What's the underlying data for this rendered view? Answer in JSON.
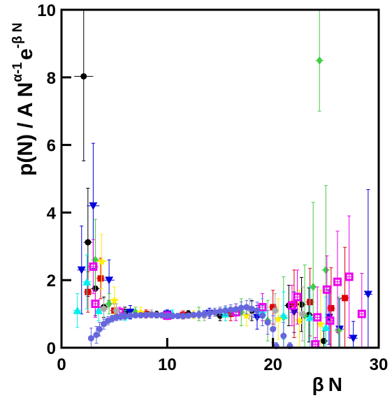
{
  "chart_data": {
    "type": "scatter",
    "title": "",
    "xlabel": {
      "prefix": "β",
      "main": "N"
    },
    "ylabel": {
      "main": "p(N) / A N",
      "sup1": "α-1",
      "base2": "e",
      "sup2": "-β N"
    },
    "xlim": [
      0,
      30
    ],
    "ylim": [
      0,
      10
    ],
    "xticks": [
      0,
      10,
      20,
      30
    ],
    "yticks": [
      0,
      2,
      4,
      6,
      8,
      10
    ],
    "xtick_labels": [
      "0",
      "10",
      "20",
      "30"
    ],
    "ytick_labels": [
      "0",
      "2",
      "4",
      "6",
      "8",
      "10"
    ],
    "grid": false,
    "legend": "none",
    "series": [
      {
        "marker": "circle",
        "color": "#000000",
        "points": [
          {
            "x": 2.1,
            "y": 8.03,
            "ey": 2.5,
            "ex": 0.9
          },
          {
            "x": 2.5,
            "y": 3.12,
            "ey": 1.6,
            "ex": 0.4
          },
          {
            "x": 3.2,
            "y": 1.75,
            "ey": 0.8,
            "ex": 0.4
          },
          {
            "x": 4.0,
            "y": 1.2,
            "ey": 0.3,
            "ex": 0.4
          },
          {
            "x": 6.0,
            "y": 1.05,
            "ey": 0.15,
            "ex": 0.4
          },
          {
            "x": 9.0,
            "y": 0.98,
            "ey": 0.1,
            "ex": 0.4
          },
          {
            "x": 12.0,
            "y": 1.0,
            "ey": 0.1,
            "ex": 0.4
          },
          {
            "x": 15.0,
            "y": 0.95,
            "ey": 0.15,
            "ex": 0.4
          },
          {
            "x": 18.0,
            "y": 1.1,
            "ey": 0.3,
            "ex": 0.4
          },
          {
            "x": 21.5,
            "y": 1.25,
            "ey": 0.6,
            "ex": 0.4
          },
          {
            "x": 22.7,
            "y": 1.28,
            "ey": 0.8,
            "ex": 0.4
          },
          {
            "x": 23.4,
            "y": 0.97,
            "ey": 0.8,
            "ex": 0.4
          },
          {
            "x": 24.8,
            "y": 0.2,
            "ey": 0.3,
            "ex": 0.4
          }
        ]
      },
      {
        "marker": "triangle-down",
        "color": "#0000dd",
        "points": [
          {
            "x": 1.9,
            "y": 2.3,
            "ey": 1.3,
            "ex": 0.4
          },
          {
            "x": 3.0,
            "y": 4.2,
            "ey": 1.85,
            "ex": 0.6
          },
          {
            "x": 4.5,
            "y": 2.0,
            "ey": 0.6,
            "ex": 0.5
          },
          {
            "x": 6.5,
            "y": 1.05,
            "ey": 0.2,
            "ex": 0.4
          },
          {
            "x": 10.0,
            "y": 1.0,
            "ey": 0.12,
            "ex": 0.4
          },
          {
            "x": 14.0,
            "y": 1.02,
            "ey": 0.15,
            "ex": 0.4
          },
          {
            "x": 18.5,
            "y": 0.9,
            "ey": 0.35,
            "ex": 0.4
          },
          {
            "x": 22.0,
            "y": 1.05,
            "ey": 0.6,
            "ex": 0.4
          },
          {
            "x": 25.3,
            "y": 0.9,
            "ey": 0.8,
            "ex": 0.4
          },
          {
            "x": 26.3,
            "y": 0.55,
            "ey": 0.9,
            "ex": 0.4
          },
          {
            "x": 27.6,
            "y": 0.28,
            "ey": 0.5,
            "ex": 0.4
          },
          {
            "x": 29.0,
            "y": 1.58,
            "ey": 3.1,
            "ex": 0.4
          }
        ]
      },
      {
        "marker": "square",
        "color": "#dd0000",
        "points": [
          {
            "x": 2.5,
            "y": 1.65,
            "ey": 0.6,
            "ex": 0.4
          },
          {
            "x": 3.7,
            "y": 2.05,
            "ey": 0.6,
            "ex": 0.4
          },
          {
            "x": 5.0,
            "y": 1.1,
            "ey": 0.2,
            "ex": 0.4
          },
          {
            "x": 8.0,
            "y": 1.0,
            "ey": 0.12,
            "ex": 0.4
          },
          {
            "x": 11.5,
            "y": 0.97,
            "ey": 0.12,
            "ex": 0.4
          },
          {
            "x": 16.0,
            "y": 1.0,
            "ey": 0.2,
            "ex": 0.4
          },
          {
            "x": 20.0,
            "y": 1.2,
            "ey": 0.5,
            "ex": 0.4
          },
          {
            "x": 22.0,
            "y": 1.3,
            "ey": 1.0,
            "ex": 0.4
          },
          {
            "x": 23.5,
            "y": 1.35,
            "ey": 1.0,
            "ex": 0.4
          },
          {
            "x": 25.5,
            "y": 1.17,
            "ey": 1.2,
            "ex": 0.4
          },
          {
            "x": 26.8,
            "y": 1.47,
            "ey": 1.5,
            "ex": 0.4
          }
        ]
      },
      {
        "marker": "diamond",
        "color": "#44cc44",
        "points": [
          {
            "x": 3.2,
            "y": 2.6,
            "ey": 1.2,
            "ex": 0.4
          },
          {
            "x": 4.5,
            "y": 1.3,
            "ey": 0.3,
            "ex": 0.4
          },
          {
            "x": 7.0,
            "y": 1.05,
            "ey": 0.15,
            "ex": 0.4
          },
          {
            "x": 13.0,
            "y": 1.0,
            "ey": 0.2,
            "ex": 0.4
          },
          {
            "x": 17.0,
            "y": 1.05,
            "ey": 0.4,
            "ex": 0.4
          },
          {
            "x": 19.5,
            "y": 0.8,
            "ey": 0.6,
            "ex": 0.4
          },
          {
            "x": 21.0,
            "y": 0.9,
            "ey": 1.2,
            "ex": 0.4
          },
          {
            "x": 23.0,
            "y": 0.95,
            "ey": 1.5,
            "ex": 0.4
          },
          {
            "x": 23.8,
            "y": 1.8,
            "ey": 2.5,
            "ex": 0.4
          },
          {
            "x": 24.4,
            "y": 8.5,
            "ey": 1.5,
            "ex": 0.4
          },
          {
            "x": 25.0,
            "y": 2.3,
            "ey": 2.5,
            "ex": 0.4
          },
          {
            "x": 26.2,
            "y": 0.5,
            "ey": 1.0,
            "ex": 0.4
          }
        ]
      },
      {
        "marker": "triangle-up",
        "color": "#00eeee",
        "points": [
          {
            "x": 1.5,
            "y": 1.1,
            "ey": 0.5,
            "ex": 0.4
          },
          {
            "x": 2.4,
            "y": 1.95,
            "ey": 0.8,
            "ex": 0.4
          },
          {
            "x": 3.5,
            "y": 1.1,
            "ey": 0.3,
            "ex": 0.4
          },
          {
            "x": 6.0,
            "y": 0.95,
            "ey": 0.15,
            "ex": 0.4
          },
          {
            "x": 10.5,
            "y": 1.0,
            "ey": 0.12,
            "ex": 0.4
          },
          {
            "x": 15.5,
            "y": 1.0,
            "ey": 0.2,
            "ex": 0.4
          },
          {
            "x": 19.0,
            "y": 1.05,
            "ey": 0.4,
            "ex": 0.4
          },
          {
            "x": 21.0,
            "y": 0.95,
            "ey": 0.7,
            "ex": 0.4
          },
          {
            "x": 23.5,
            "y": 0.9,
            "ey": 0.9,
            "ex": 0.4
          },
          {
            "x": 25.0,
            "y": 0.6,
            "ey": 0.9,
            "ex": 0.4
          }
        ]
      },
      {
        "marker": "star",
        "color": "#ffee00",
        "points": [
          {
            "x": 3.8,
            "y": 2.55,
            "ey": 0.8,
            "ex": 0.5
          },
          {
            "x": 5.0,
            "y": 1.4,
            "ey": 0.4,
            "ex": 0.4
          },
          {
            "x": 7.5,
            "y": 1.05,
            "ey": 0.15,
            "ex": 0.4
          },
          {
            "x": 12.5,
            "y": 0.98,
            "ey": 0.12,
            "ex": 0.4
          },
          {
            "x": 17.5,
            "y": 0.95,
            "ey": 0.3,
            "ex": 0.4
          },
          {
            "x": 20.5,
            "y": 0.85,
            "ey": 0.6,
            "ex": 0.4
          },
          {
            "x": 22.5,
            "y": 0.8,
            "ey": 0.9,
            "ex": 0.4
          },
          {
            "x": 24.5,
            "y": 0.7,
            "ey": 1.0,
            "ex": 0.4
          }
        ]
      },
      {
        "marker": "open-square",
        "color": "#ee00ee",
        "points": [
          {
            "x": 3.0,
            "y": 2.4,
            "ey": 0.8,
            "ex": 0.5
          },
          {
            "x": 3.2,
            "y": 1.3,
            "ey": 0.4,
            "ex": 0.4
          },
          {
            "x": 5.5,
            "y": 1.05,
            "ey": 0.15,
            "ex": 0.4
          },
          {
            "x": 10.0,
            "y": 0.95,
            "ey": 0.12,
            "ex": 0.4
          },
          {
            "x": 16.5,
            "y": 1.05,
            "ey": 0.25,
            "ex": 0.4
          },
          {
            "x": 19.0,
            "y": 1.2,
            "ey": 0.4,
            "ex": 0.4
          },
          {
            "x": 21.8,
            "y": 1.25,
            "ey": 0.6,
            "ex": 0.4
          },
          {
            "x": 22.3,
            "y": 1.5,
            "ey": 0.8,
            "ex": 0.4
          },
          {
            "x": 24.2,
            "y": 0.9,
            "ey": 0.9,
            "ex": 0.4
          },
          {
            "x": 25.1,
            "y": 1.72,
            "ey": 1.0,
            "ex": 0.4
          },
          {
            "x": 25.4,
            "y": 0.8,
            "ey": 1.0,
            "ex": 0.4
          },
          {
            "x": 26.1,
            "y": 1.95,
            "ey": 1.5,
            "ex": 0.4
          },
          {
            "x": 27.2,
            "y": 2.1,
            "ey": 1.8,
            "ex": 0.4
          },
          {
            "x": 28.4,
            "y": 1.0,
            "ey": 1.2,
            "ex": 0.4
          },
          {
            "x": 24.0,
            "y": 0.1,
            "ey": 0.2,
            "ex": 0.4
          }
        ]
      },
      {
        "marker": "circle",
        "color": "#aaaaaa",
        "points": [
          {
            "x": 4.0,
            "y": 1.15,
            "ey": 0.3,
            "ex": 0.4
          },
          {
            "x": 5.2,
            "y": 1.1,
            "ey": 0.2,
            "ex": 0.4
          },
          {
            "x": 8.5,
            "y": 1.0,
            "ey": 0.12,
            "ex": 0.4
          },
          {
            "x": 13.5,
            "y": 0.95,
            "ey": 0.15,
            "ex": 0.4
          },
          {
            "x": 17.8,
            "y": 1.15,
            "ey": 0.3,
            "ex": 0.4
          },
          {
            "x": 20.2,
            "y": 1.1,
            "ey": 0.5,
            "ex": 0.4
          },
          {
            "x": 22.8,
            "y": 1.0,
            "ey": 0.8,
            "ex": 0.4
          }
        ]
      },
      {
        "marker": "circle",
        "color": "#6666dd",
        "points": [
          {
            "x": 2.8,
            "y": 0.28,
            "ey": 0.3,
            "ex": 0.3
          },
          {
            "x": 3.3,
            "y": 0.38,
            "ey": 0.25,
            "ex": 0.3
          },
          {
            "x": 3.6,
            "y": 0.55,
            "ey": 0.2,
            "ex": 0.3
          },
          {
            "x": 4.0,
            "y": 0.7,
            "ey": 0.15,
            "ex": 0.3
          },
          {
            "x": 4.4,
            "y": 0.8,
            "ey": 0.12,
            "ex": 0.3
          },
          {
            "x": 4.8,
            "y": 0.86,
            "ey": 0.1,
            "ex": 0.3
          },
          {
            "x": 5.2,
            "y": 0.9,
            "ey": 0.1,
            "ex": 0.3
          },
          {
            "x": 5.6,
            "y": 0.92,
            "ey": 0.1,
            "ex": 0.3
          },
          {
            "x": 6.0,
            "y": 0.94,
            "ey": 0.1,
            "ex": 0.3
          },
          {
            "x": 6.5,
            "y": 0.95,
            "ey": 0.08,
            "ex": 0.3
          },
          {
            "x": 7.0,
            "y": 0.96,
            "ey": 0.08,
            "ex": 0.3
          },
          {
            "x": 7.5,
            "y": 0.96,
            "ey": 0.08,
            "ex": 0.3
          },
          {
            "x": 8.0,
            "y": 0.97,
            "ey": 0.08,
            "ex": 0.3
          },
          {
            "x": 8.5,
            "y": 0.97,
            "ey": 0.08,
            "ex": 0.3
          },
          {
            "x": 9.0,
            "y": 0.96,
            "ey": 0.08,
            "ex": 0.3
          },
          {
            "x": 9.5,
            "y": 0.96,
            "ey": 0.08,
            "ex": 0.3
          },
          {
            "x": 10.0,
            "y": 0.95,
            "ey": 0.08,
            "ex": 0.3
          },
          {
            "x": 10.5,
            "y": 0.94,
            "ey": 0.08,
            "ex": 0.3
          },
          {
            "x": 11.0,
            "y": 0.94,
            "ey": 0.08,
            "ex": 0.3
          },
          {
            "x": 11.5,
            "y": 0.94,
            "ey": 0.08,
            "ex": 0.3
          },
          {
            "x": 12.0,
            "y": 0.95,
            "ey": 0.08,
            "ex": 0.3
          },
          {
            "x": 12.5,
            "y": 0.97,
            "ey": 0.08,
            "ex": 0.3
          },
          {
            "x": 13.0,
            "y": 0.98,
            "ey": 0.1,
            "ex": 0.3
          },
          {
            "x": 13.5,
            "y": 1.0,
            "ey": 0.1,
            "ex": 0.3
          },
          {
            "x": 14.0,
            "y": 1.02,
            "ey": 0.1,
            "ex": 0.3
          },
          {
            "x": 14.5,
            "y": 1.05,
            "ey": 0.12,
            "ex": 0.3
          },
          {
            "x": 15.0,
            "y": 1.08,
            "ey": 0.12,
            "ex": 0.3
          },
          {
            "x": 15.5,
            "y": 1.1,
            "ey": 0.14,
            "ex": 0.3
          },
          {
            "x": 16.0,
            "y": 1.12,
            "ey": 0.15,
            "ex": 0.3
          },
          {
            "x": 16.5,
            "y": 1.14,
            "ey": 0.16,
            "ex": 0.3
          },
          {
            "x": 17.0,
            "y": 1.18,
            "ey": 0.18,
            "ex": 0.3
          },
          {
            "x": 17.5,
            "y": 1.2,
            "ey": 0.2,
            "ex": 0.3
          },
          {
            "x": 18.0,
            "y": 1.15,
            "ey": 0.22,
            "ex": 0.3
          },
          {
            "x": 18.5,
            "y": 1.1,
            "ey": 0.25,
            "ex": 0.3
          },
          {
            "x": 19.0,
            "y": 0.95,
            "ey": 0.3,
            "ex": 0.3
          },
          {
            "x": 19.5,
            "y": 0.75,
            "ey": 0.35,
            "ex": 0.3
          },
          {
            "x": 20.0,
            "y": 0.55,
            "ey": 0.4,
            "ex": 0.3
          },
          {
            "x": 20.3,
            "y": 0.05,
            "ey": 0.1,
            "ex": 0.3
          },
          {
            "x": 21.0,
            "y": 0.35,
            "ey": 0.4,
            "ex": 0.3
          },
          {
            "x": 21.6,
            "y": 0.05,
            "ey": 0.1,
            "ex": 0.3
          }
        ]
      }
    ]
  }
}
